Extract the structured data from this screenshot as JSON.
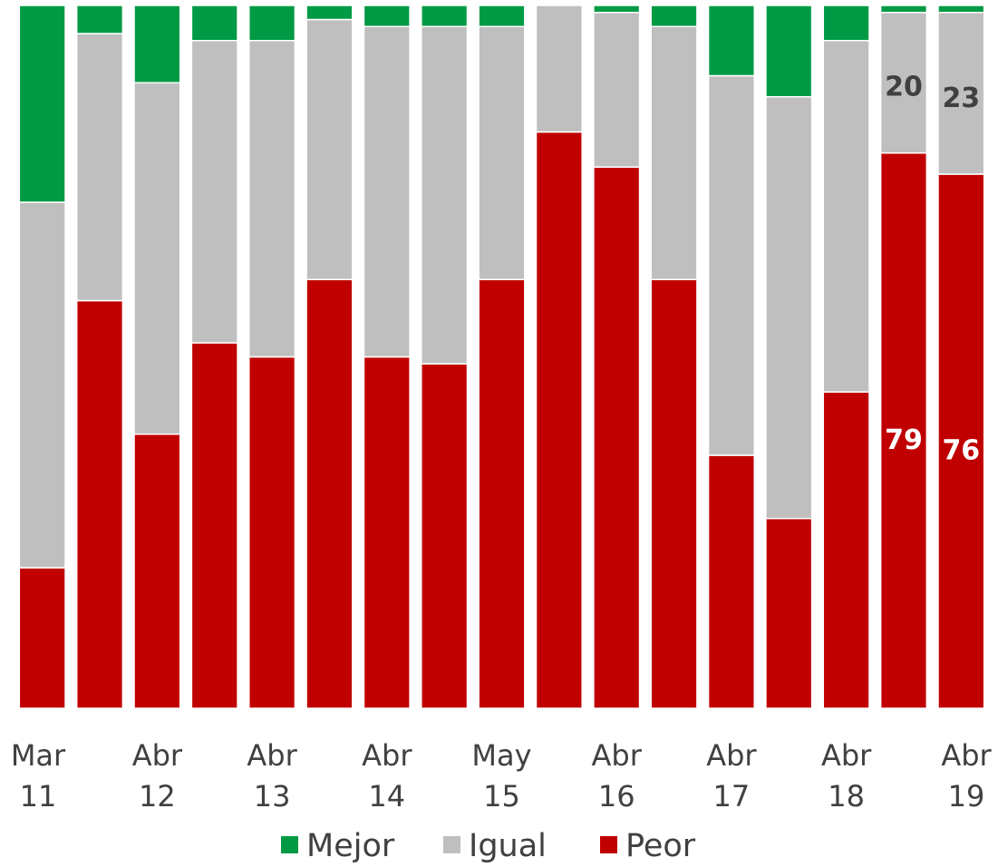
{
  "chart_data": {
    "type": "bar",
    "stacked": true,
    "normalized": true,
    "ylim": [
      0,
      100
    ],
    "grid": false,
    "legend_position": "bottom",
    "x_tick_labels": [
      {
        "line1": "Mar",
        "line2": "11"
      },
      {
        "line1": "Abr",
        "line2": "12"
      },
      {
        "line1": "Abr",
        "line2": "13"
      },
      {
        "line1": "Abr",
        "line2": "14"
      },
      {
        "line1": "May",
        "line2": "15"
      },
      {
        "line1": "Abr",
        "line2": "16"
      },
      {
        "line1": "Abr",
        "line2": "17"
      },
      {
        "line1": "Abr",
        "line2": "18"
      },
      {
        "line1": "Abr",
        "line2": "19"
      }
    ],
    "series": [
      {
        "name": "Peor",
        "color": "#c00000",
        "values": [
          20,
          58,
          39,
          52,
          50,
          61,
          50,
          49,
          61,
          82,
          77,
          61,
          36,
          27,
          45,
          79,
          76
        ]
      },
      {
        "name": "Igual",
        "color": "#bfbfbf",
        "values": [
          52,
          38,
          50,
          43,
          45,
          37,
          47,
          48,
          36,
          18,
          22,
          36,
          54,
          60,
          50,
          20,
          23
        ]
      },
      {
        "name": "Mejor",
        "color": "#009a44",
        "values": [
          28,
          4,
          11,
          5,
          5,
          2,
          3,
          3,
          3,
          0,
          1,
          3,
          10,
          13,
          5,
          1,
          1
        ]
      }
    ],
    "data_labels": [
      {
        "bar_index": 15,
        "series": "Peor",
        "text": "79",
        "color": "#ffffff"
      },
      {
        "bar_index": 16,
        "series": "Peor",
        "text": "76",
        "color": "#ffffff"
      },
      {
        "bar_index": 15,
        "series": "Igual",
        "text": "20",
        "color": "#404040"
      },
      {
        "bar_index": 16,
        "series": "Igual",
        "text": "23",
        "color": "#404040"
      }
    ]
  }
}
